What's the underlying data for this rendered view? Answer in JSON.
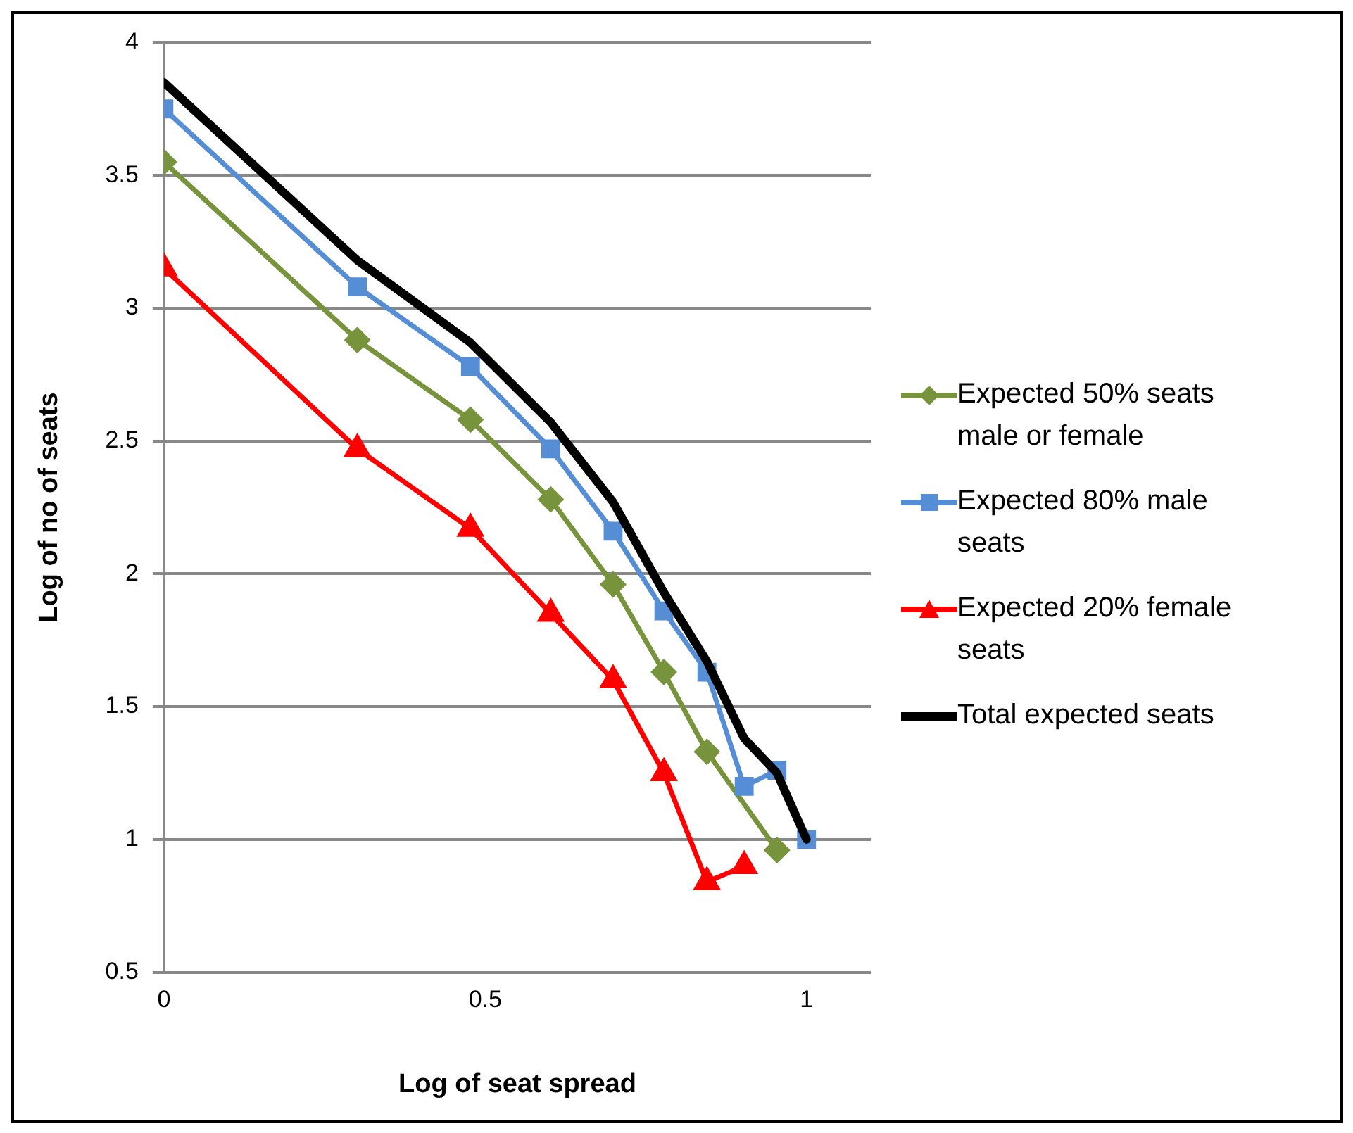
{
  "chart_data": {
    "type": "line",
    "xlabel": "Log of seat spread",
    "ylabel": "Log of no of seats",
    "xlim": [
      0,
      1.1
    ],
    "xticks": [
      0,
      0.5,
      1
    ],
    "ylim": [
      0.5,
      4
    ],
    "yticks": [
      0.5,
      1,
      1.5,
      2,
      2.5,
      3,
      3.5,
      4
    ],
    "grid": "y",
    "legend": "right",
    "series": [
      {
        "name": "Expected 50% seats male or female",
        "color": "#77933c",
        "marker": "diamond",
        "x": [
          0,
          0.301,
          0.477,
          0.602,
          0.699,
          0.778,
          0.845,
          0.954
        ],
        "values": [
          3.55,
          2.88,
          2.58,
          2.28,
          1.96,
          1.63,
          1.33,
          0.96
        ]
      },
      {
        "name": "Expected 80% male seats",
        "color": "#558ed5",
        "marker": "square",
        "x": [
          0,
          0.301,
          0.477,
          0.602,
          0.699,
          0.778,
          0.845,
          0.903,
          0.954,
          1
        ],
        "values": [
          3.75,
          3.08,
          2.78,
          2.47,
          2.16,
          1.86,
          1.63,
          1.2,
          1.26,
          1.0
        ]
      },
      {
        "name": "Expected 20% female seats",
        "color": "#ff0000",
        "marker": "triangle",
        "x": [
          0,
          0.301,
          0.477,
          0.602,
          0.699,
          0.778,
          0.845,
          0.903
        ],
        "values": [
          3.15,
          2.47,
          2.17,
          1.85,
          1.6,
          1.25,
          0.84,
          0.9
        ]
      },
      {
        "name": "Total expected seats",
        "color": "#000000",
        "marker": "none",
        "x": [
          0,
          0.301,
          0.477,
          0.602,
          0.699,
          0.778,
          0.845,
          0.903,
          0.954,
          1
        ],
        "values": [
          3.85,
          3.18,
          2.87,
          2.57,
          2.27,
          1.93,
          1.67,
          1.38,
          1.25,
          1.0
        ]
      }
    ]
  }
}
